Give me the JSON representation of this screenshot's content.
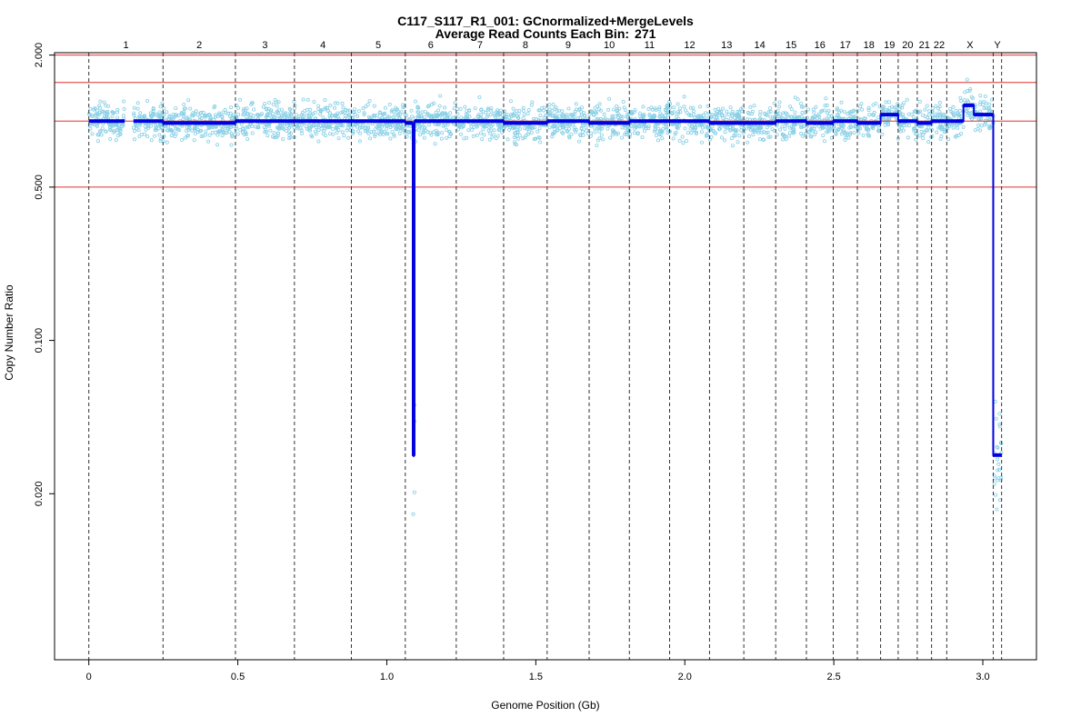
{
  "chart_data": {
    "type": "scatter",
    "title": "C117_S117_R1_001: GCnormalized+MergeLevels",
    "subtitle": "Average Read Counts Each Bin:",
    "avg_read_count": "271",
    "xlabel": "Genome Position (Gb)",
    "ylabel": "Copy Number Ratio",
    "x_scale": "linear",
    "y_scale": "log",
    "xlim": [
      -0.115,
      3.18
    ],
    "ylim": [
      0.0035,
      2.05
    ],
    "x_ticks": [
      0,
      0.5,
      1.0,
      1.5,
      2.0,
      2.5,
      3.0
    ],
    "x_tick_labels": [
      "0",
      "0.5",
      "1.0",
      "1.5",
      "2.0",
      "2.5",
      "3.0"
    ],
    "y_ticks": [
      2.0,
      0.5,
      0.1,
      0.02
    ],
    "y_tick_labels": [
      "2.000",
      "0.500",
      "0.100",
      "0.020"
    ],
    "reference_lines": [
      2.0,
      1.5,
      1.0,
      0.5
    ],
    "reference_line_color": "#e03030",
    "point_color": "#87cfe6",
    "segment_color": "#0000e0",
    "grid": false,
    "chromosomes": [
      {
        "name": "1",
        "start": 0.0,
        "end": 0.249,
        "level": 1.0
      },
      {
        "name": "2",
        "start": 0.249,
        "end": 0.492,
        "level": 0.98
      },
      {
        "name": "3",
        "start": 0.492,
        "end": 0.69,
        "level": 1.0
      },
      {
        "name": "4",
        "start": 0.69,
        "end": 0.881,
        "level": 1.0
      },
      {
        "name": "5",
        "start": 0.881,
        "end": 1.062,
        "level": 1.0
      },
      {
        "name": "6",
        "start": 1.062,
        "end": 1.233,
        "level": 1.0
      },
      {
        "name": "7",
        "start": 1.233,
        "end": 1.392,
        "level": 1.0
      },
      {
        "name": "8",
        "start": 1.392,
        "end": 1.538,
        "level": 0.98
      },
      {
        "name": "9",
        "start": 1.538,
        "end": 1.679,
        "level": 1.0
      },
      {
        "name": "10",
        "start": 1.679,
        "end": 1.814,
        "level": 0.98
      },
      {
        "name": "11",
        "start": 1.814,
        "end": 1.949,
        "level": 1.0
      },
      {
        "name": "12",
        "start": 1.949,
        "end": 2.083,
        "level": 1.0
      },
      {
        "name": "13",
        "start": 2.083,
        "end": 2.198,
        "level": 0.98
      },
      {
        "name": "14",
        "start": 2.198,
        "end": 2.305,
        "level": 0.98
      },
      {
        "name": "15",
        "start": 2.305,
        "end": 2.408,
        "level": 1.0
      },
      {
        "name": "16",
        "start": 2.408,
        "end": 2.498,
        "level": 0.98
      },
      {
        "name": "17",
        "start": 2.498,
        "end": 2.579,
        "level": 1.0
      },
      {
        "name": "18",
        "start": 2.579,
        "end": 2.657,
        "level": 0.98
      },
      {
        "name": "19",
        "start": 2.657,
        "end": 2.716,
        "level": 1.07
      },
      {
        "name": "20",
        "start": 2.716,
        "end": 2.78,
        "level": 1.0
      },
      {
        "name": "21",
        "start": 2.78,
        "end": 2.828,
        "level": 0.98
      },
      {
        "name": "22",
        "start": 2.828,
        "end": 2.879,
        "level": 1.0
      },
      {
        "name": "X",
        "start": 2.879,
        "end": 3.035,
        "level": 1.07
      },
      {
        "name": "Y",
        "start": 3.035,
        "end": 3.063,
        "level": 0.03
      }
    ],
    "segments": [
      {
        "x0": 0.0,
        "x1": 0.12,
        "y": 1.0
      },
      {
        "x0": 0.15,
        "x1": 0.249,
        "y": 1.0
      },
      {
        "x0": 0.249,
        "x1": 0.492,
        "y": 0.98
      },
      {
        "x0": 0.492,
        "x1": 1.062,
        "y": 1.0
      },
      {
        "x0": 1.062,
        "x1": 1.087,
        "y": 0.98
      },
      {
        "x0": 1.087,
        "x1": 1.093,
        "y": 0.03
      },
      {
        "x0": 1.093,
        "x1": 1.392,
        "y": 1.0
      },
      {
        "x0": 1.392,
        "x1": 1.538,
        "y": 0.98
      },
      {
        "x0": 1.538,
        "x1": 1.679,
        "y": 1.0
      },
      {
        "x0": 1.679,
        "x1": 1.814,
        "y": 0.98
      },
      {
        "x0": 1.814,
        "x1": 2.083,
        "y": 1.0
      },
      {
        "x0": 2.083,
        "x1": 2.305,
        "y": 0.98
      },
      {
        "x0": 2.305,
        "x1": 2.408,
        "y": 1.0
      },
      {
        "x0": 2.408,
        "x1": 2.498,
        "y": 0.98
      },
      {
        "x0": 2.498,
        "x1": 2.579,
        "y": 1.0
      },
      {
        "x0": 2.579,
        "x1": 2.657,
        "y": 0.98
      },
      {
        "x0": 2.657,
        "x1": 2.716,
        "y": 1.07
      },
      {
        "x0": 2.716,
        "x1": 2.78,
        "y": 1.0
      },
      {
        "x0": 2.78,
        "x1": 2.828,
        "y": 0.98
      },
      {
        "x0": 2.828,
        "x1": 2.879,
        "y": 1.0
      },
      {
        "x0": 2.879,
        "x1": 2.935,
        "y": 1.0
      },
      {
        "x0": 2.935,
        "x1": 2.97,
        "y": 1.18
      },
      {
        "x0": 2.97,
        "x1": 3.035,
        "y": 1.07
      },
      {
        "x0": 3.035,
        "x1": 3.063,
        "y": 0.03
      }
    ]
  }
}
